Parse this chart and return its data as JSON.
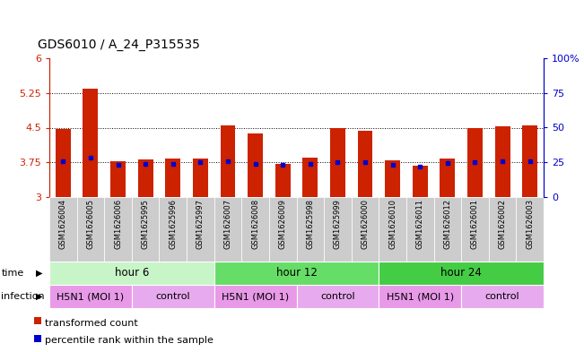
{
  "title": "GDS6010 / A_24_P315535",
  "samples": [
    "GSM1626004",
    "GSM1626005",
    "GSM1626006",
    "GSM1625995",
    "GSM1625996",
    "GSM1625997",
    "GSM1626007",
    "GSM1626008",
    "GSM1626009",
    "GSM1625998",
    "GSM1625999",
    "GSM1626000",
    "GSM1626010",
    "GSM1626011",
    "GSM1626012",
    "GSM1626001",
    "GSM1626002",
    "GSM1626003"
  ],
  "bar_values": [
    4.47,
    5.35,
    3.78,
    3.82,
    3.83,
    3.84,
    4.55,
    4.38,
    3.72,
    3.85,
    4.5,
    4.43,
    3.8,
    3.68,
    3.83,
    4.5,
    4.52,
    4.55
  ],
  "blue_values": [
    3.77,
    3.85,
    3.7,
    3.71,
    3.71,
    3.75,
    3.77,
    3.72,
    3.7,
    3.72,
    3.76,
    3.75,
    3.7,
    3.66,
    3.74,
    3.76,
    3.77,
    3.77
  ],
  "bar_color": "#cc2200",
  "blue_color": "#0000cc",
  "ylim_left": [
    3.0,
    6.0
  ],
  "ylim_right": [
    0,
    100
  ],
  "yticks_left": [
    3.0,
    3.75,
    4.5,
    5.25,
    6.0
  ],
  "yticks_right": [
    0,
    25,
    50,
    75,
    100
  ],
  "ytick_labels_left": [
    "3",
    "3.75",
    "4.5",
    "5.25",
    "6"
  ],
  "ytick_labels_right": [
    "0",
    "25",
    "50",
    "75",
    "100%"
  ],
  "grid_lines": [
    3.75,
    4.5,
    5.25
  ],
  "time_groups": [
    {
      "label": "hour 6",
      "start": 0,
      "end": 6,
      "color": "#c8f5c8"
    },
    {
      "label": "hour 12",
      "start": 6,
      "end": 12,
      "color": "#66dd66"
    },
    {
      "label": "hour 24",
      "start": 12,
      "end": 18,
      "color": "#44cc44"
    }
  ],
  "infection_groups": [
    {
      "label": "H5N1 (MOI 1)",
      "start": 0,
      "end": 3,
      "color": "#e899e8"
    },
    {
      "label": "control",
      "start": 3,
      "end": 6,
      "color": "#e8aaee"
    },
    {
      "label": "H5N1 (MOI 1)",
      "start": 6,
      "end": 9,
      "color": "#e899e8"
    },
    {
      "label": "control",
      "start": 9,
      "end": 12,
      "color": "#e8aaee"
    },
    {
      "label": "H5N1 (MOI 1)",
      "start": 12,
      "end": 15,
      "color": "#e899e8"
    },
    {
      "label": "control",
      "start": 15,
      "end": 18,
      "color": "#e8aaee"
    }
  ],
  "bar_width": 0.55,
  "background_color": "#ffffff",
  "left_axis_color": "#cc2200",
  "right_axis_color": "#0000cc",
  "label_bg_color": "#cccccc"
}
